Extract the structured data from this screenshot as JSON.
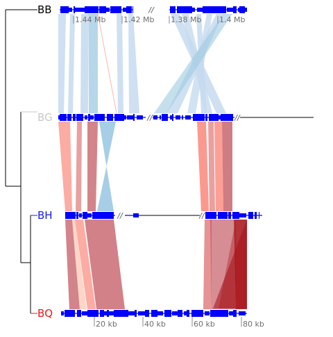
{
  "genomes": [
    {
      "id": "BB",
      "label": "BB",
      "color": "#000000"
    },
    {
      "id": "BG",
      "label": "BG",
      "color": "#c8c8c8"
    },
    {
      "id": "BH",
      "label": "BH",
      "color": "#1a1ae6"
    },
    {
      "id": "BQ",
      "label": "BQ",
      "color": "#e61a1a"
    }
  ],
  "top_ticks": [
    "1.44 Mb",
    "1.42 Mb",
    "1.38 Mb",
    "1.4 Mb"
  ],
  "bottom_ticks": [
    "20 kb",
    "40 kb",
    "60 kb",
    "80 kb"
  ],
  "colors": {
    "gene": "#0000ff",
    "axis_line": "#000000",
    "tree": "#000000",
    "tree_BG": "#c8c8c8",
    "tree_BH": "#1a1ae6",
    "tree_BQ": "#e61a1a",
    "light_blue": "#c6dbef",
    "mid_blue": "#9ecae1",
    "blue": "#6baed6",
    "salmon": "#fb8072",
    "pink": "#fcbba1",
    "rose": "#e08080",
    "dark_rose": "#c0505a",
    "dark_red": "#a50f15"
  }
}
